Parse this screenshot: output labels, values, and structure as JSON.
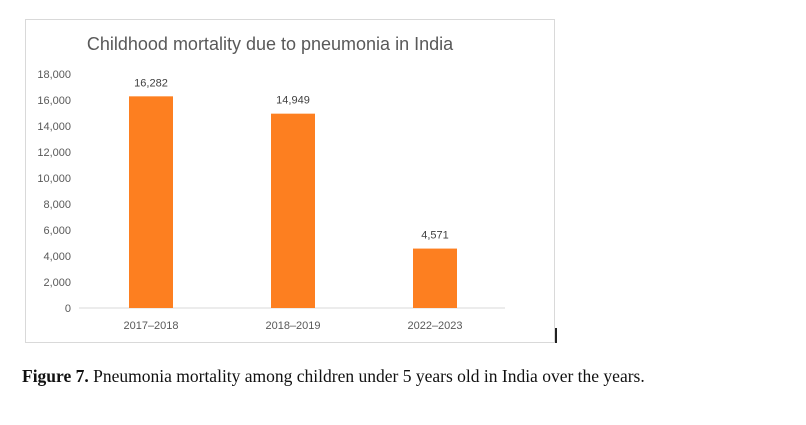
{
  "chart_data": {
    "type": "bar",
    "title": "Childhood mortality due to pneumonia in India",
    "categories": [
      "2017–2018",
      "2018–2019",
      "2022–2023"
    ],
    "values": [
      16282,
      14949,
      4571
    ],
    "data_labels": [
      "16,282",
      "14,949",
      "4,571"
    ],
    "yticks": [
      "0",
      "2,000",
      "4,000",
      "6,000",
      "8,000",
      "10,000",
      "12,000",
      "14,000",
      "16,000",
      "18,000"
    ],
    "ylim": [
      0,
      18000
    ],
    "xlabel": "",
    "ylabel": "",
    "grid": false,
    "legend": "none",
    "bar_color": "#fd7f20",
    "text_color": "#595959"
  },
  "caption": {
    "label": "Figure 7.",
    "text": " Pneumonia mortality among children under 5 years old in India over the years."
  }
}
